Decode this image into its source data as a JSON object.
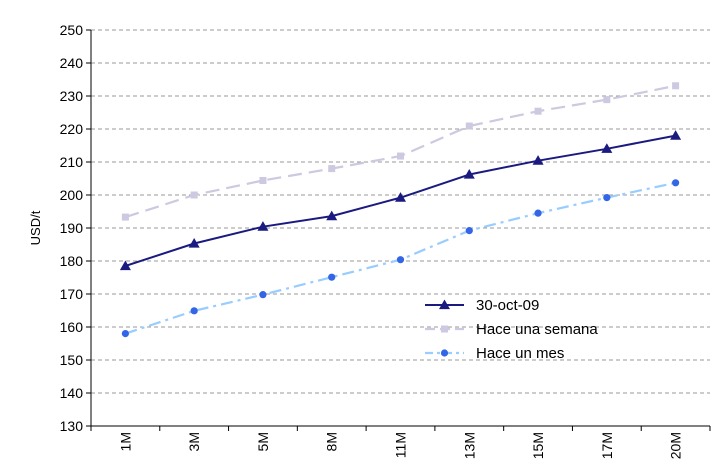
{
  "chart_data": {
    "type": "line",
    "ylabel": "USD/t",
    "xlabel": "",
    "ylim": [
      130,
      250
    ],
    "ystep": 10,
    "grid": "horizontal dashed",
    "legend_position": "lower-right",
    "categories": [
      "1M",
      "3M",
      "5M",
      "8M",
      "11M",
      "13M",
      "15M",
      "17M",
      "20M"
    ],
    "series": [
      {
        "name": "30-oct-09",
        "color": "#1a1a80",
        "style": "solid",
        "marker": "triangle",
        "values": [
          178.5,
          185.3,
          190.4,
          193.6,
          199.2,
          206.2,
          210.4,
          214.0,
          218.0
        ]
      },
      {
        "name": "Hace una semana",
        "color": "#ccc9e0",
        "style": "dashed",
        "marker": "square",
        "values": [
          193.3,
          200.0,
          204.4,
          208.0,
          211.8,
          220.9,
          225.4,
          228.9,
          233.1
        ]
      },
      {
        "name": "Hace un mes",
        "color": "#99ccff",
        "markerColor": "#3366e6",
        "style": "dash-dot",
        "marker": "circle",
        "values": [
          158.0,
          164.9,
          169.8,
          175.1,
          180.4,
          189.2,
          194.5,
          199.2,
          203.7
        ]
      }
    ]
  }
}
